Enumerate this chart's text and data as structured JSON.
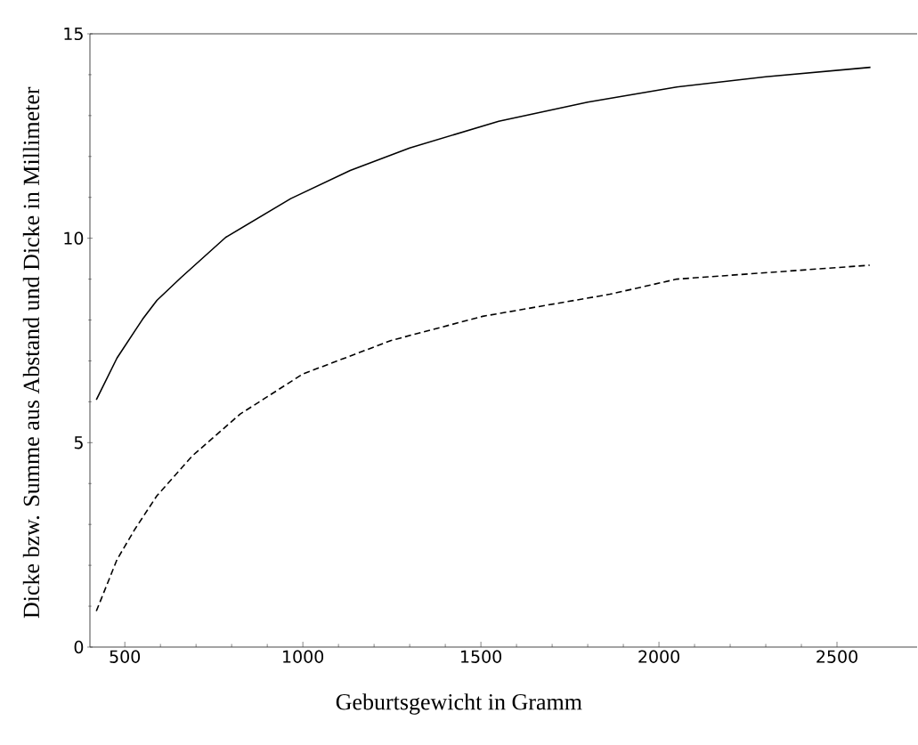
{
  "chart_data": {
    "type": "line",
    "xlabel": "Geburtsgewicht in Gramm",
    "ylabel": "Dicke bzw. Summe aus Abstand und Dicke in Millimeter",
    "xlim": [
      402,
      2725
    ],
    "ylim": [
      0,
      15
    ],
    "xticks": [
      500,
      1000,
      1500,
      2000,
      2500
    ],
    "yticks": [
      0,
      5,
      10,
      15
    ],
    "series": [
      {
        "color": "#000000",
        "line_style": "solid",
        "x": [
          420,
          478,
          528,
          550,
          590,
          658,
          783,
          966,
          1133,
          1300,
          1550,
          1800,
          2050,
          2300,
          2594
        ],
        "values": [
          6.05,
          7.07,
          7.73,
          8.02,
          8.48,
          9.04,
          10.02,
          10.97,
          11.66,
          12.21,
          12.86,
          13.33,
          13.7,
          13.95,
          14.18
        ]
      },
      {
        "color": "#000000",
        "line_style": "dashed",
        "x": [
          420,
          478,
          528,
          590,
          690,
          824,
          1000,
          1248,
          1505,
          1862,
          2050,
          2592
        ],
        "values": [
          0.88,
          2.14,
          2.88,
          3.7,
          4.68,
          5.7,
          6.68,
          7.5,
          8.09,
          8.63,
          9.0,
          9.34
        ]
      }
    ]
  }
}
